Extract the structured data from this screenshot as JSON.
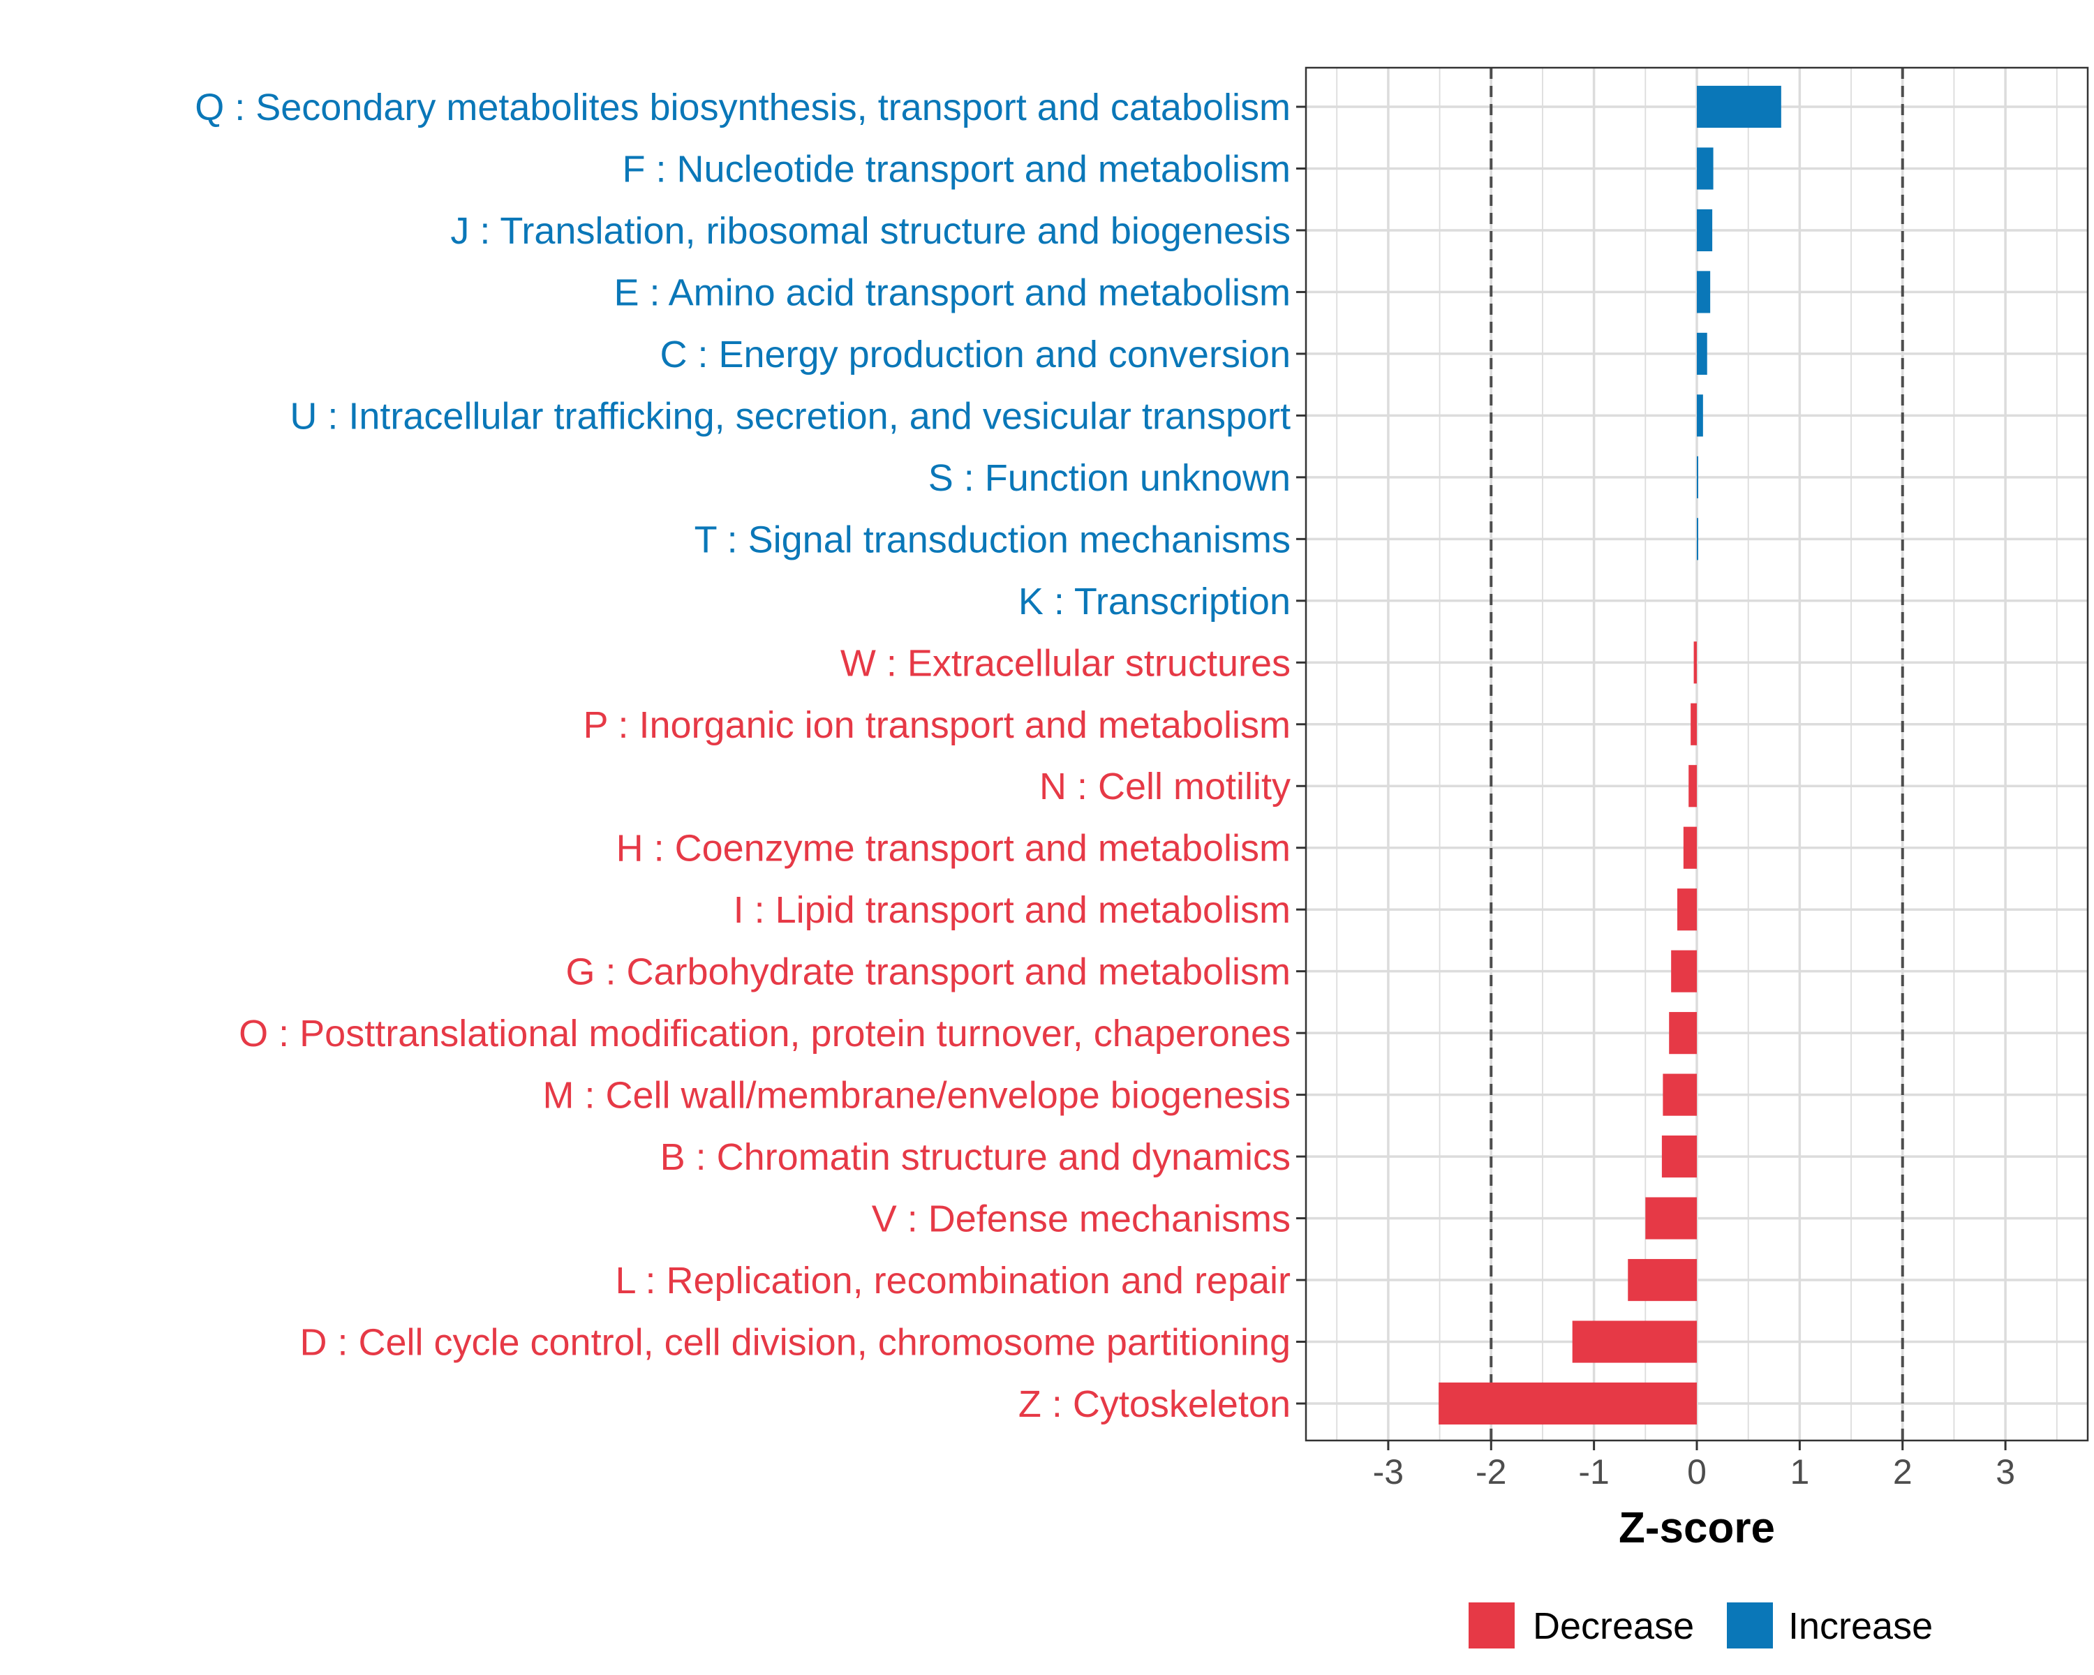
{
  "chart_data": {
    "type": "bar",
    "orientation": "horizontal",
    "xlabel": "Z-score",
    "ylabel": "",
    "xlim": [
      -3.8,
      3.8
    ],
    "xticks": [
      -3,
      -2,
      -1,
      0,
      1,
      2,
      3
    ],
    "threshold_lines": [
      -2,
      2
    ],
    "grid": true,
    "legend_position": "bottom",
    "colors": {
      "Decrease": "#E63946",
      "Increase": "#0A77B8"
    },
    "legend": [
      {
        "label": "Decrease",
        "color": "#E63946"
      },
      {
        "label": "Increase",
        "color": "#0A77B8"
      }
    ],
    "categories": [
      "Q : Secondary metabolites biosynthesis, transport and catabolism",
      "F : Nucleotide transport and metabolism",
      "J : Translation, ribosomal structure and biogenesis",
      "E : Amino acid transport and metabolism",
      "C : Energy production and conversion",
      "U : Intracellular trafficking, secretion, and vesicular transport",
      "S : Function unknown",
      "T : Signal transduction mechanisms",
      "K : Transcription",
      "W : Extracellular structures",
      "P : Inorganic ion transport and metabolism",
      "N : Cell motility",
      "H : Coenzyme transport and metabolism",
      "I : Lipid transport and metabolism",
      "G : Carbohydrate transport and metabolism",
      "O : Posttranslational modification, protein turnover, chaperones",
      "M : Cell wall/membrane/envelope biogenesis",
      "B : Chromatin structure and dynamics",
      "V : Defense mechanisms",
      "L : Replication, recombination and repair",
      "D : Cell cycle control, cell division, chromosome partitioning",
      "Z : Cytoskeleton"
    ],
    "values": [
      0.82,
      0.16,
      0.15,
      0.13,
      0.1,
      0.06,
      0.01,
      0.01,
      0.0,
      -0.03,
      -0.06,
      -0.08,
      -0.13,
      -0.19,
      -0.25,
      -0.27,
      -0.33,
      -0.34,
      -0.5,
      -0.67,
      -1.21,
      -2.51
    ],
    "direction": [
      "Increase",
      "Increase",
      "Increase",
      "Increase",
      "Increase",
      "Increase",
      "Increase",
      "Increase",
      "Increase",
      "Decrease",
      "Decrease",
      "Decrease",
      "Decrease",
      "Decrease",
      "Decrease",
      "Decrease",
      "Decrease",
      "Decrease",
      "Decrease",
      "Decrease",
      "Decrease",
      "Decrease"
    ]
  }
}
